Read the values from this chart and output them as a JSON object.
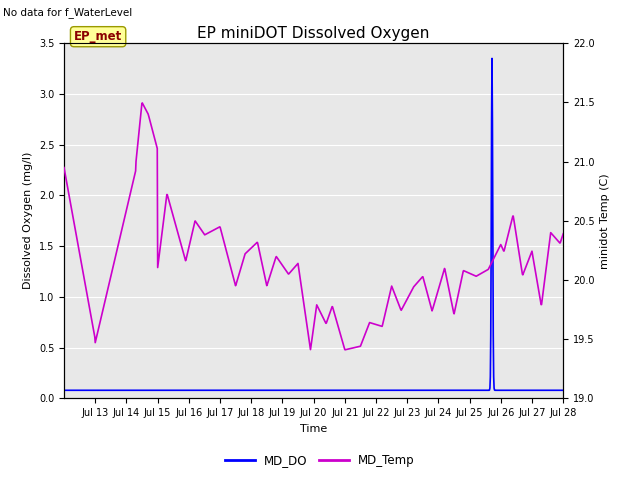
{
  "title": "EP miniDOT Dissolved Oxygen",
  "xlabel": "Time",
  "ylabel_left": "Dissolved Oxygen (mg/l)",
  "ylabel_right": "minidot Temp (C)",
  "top_left_text": "No data for f_WaterLevel",
  "box_label": "EP_met",
  "box_label_color": "#8B0000",
  "box_bg_color": "#FFFF99",
  "box_edge_color": "#999900",
  "ylim_left": [
    0.0,
    3.5
  ],
  "ylim_right": [
    19.0,
    22.0
  ],
  "yticks_left": [
    0.0,
    0.5,
    1.0,
    1.5,
    2.0,
    2.5,
    3.0,
    3.5
  ],
  "yticks_right": [
    19.0,
    19.5,
    20.0,
    20.5,
    21.0,
    21.5,
    22.0
  ],
  "legend_entries": [
    "MD_DO",
    "MD_Temp"
  ],
  "legend_colors": [
    "blue",
    "#CC00CC"
  ],
  "bg_color": "#E8E8E8",
  "grid_color": "white",
  "md_do_color": "blue",
  "md_temp_color": "#CC00CC",
  "md_do_linewidth": 1.2,
  "md_temp_linewidth": 1.2,
  "xlim": [
    12,
    28
  ],
  "xtick_positions": [
    13,
    14,
    15,
    16,
    17,
    18,
    19,
    20,
    21,
    22,
    23,
    24,
    25,
    26,
    27,
    28
  ],
  "xtick_labels": [
    "Jul 13",
    "Jul 14",
    "Jul 15",
    "Jul 16",
    "Jul 17",
    "Jul 18",
    "Jul 19",
    "Jul 20",
    "Jul 21",
    "Jul 22",
    "Jul 23",
    "Jul 24",
    "Jul 25",
    "Jul 26",
    "Jul 27",
    "Jul 28"
  ],
  "title_fontsize": 11,
  "label_fontsize": 8,
  "tick_fontsize": 7
}
